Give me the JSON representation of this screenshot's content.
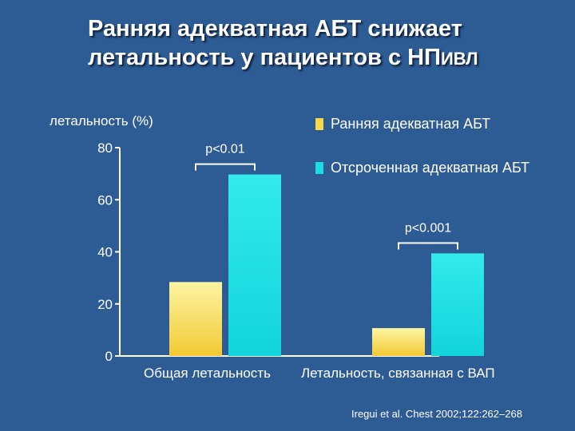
{
  "title": {
    "line1": "Ранняя адекватная АБТ снижает",
    "line2_main": "летальность у пациентов с НП",
    "line2_sub": "ИВЛ"
  },
  "citation": "Iregui et al. Chest 2002;122:262–268",
  "colors": {
    "background": "#2d5b93",
    "early": "#f4d84a",
    "delayed": "#19dbe0"
  },
  "chart_data": {
    "type": "bar",
    "ylabel": "летальность (%)",
    "ylim": [
      0,
      80
    ],
    "yticks": [
      "0",
      "20",
      "40",
      "60",
      "80"
    ],
    "categories": [
      "Общая летальность",
      "Летальность, связанная с ВАП"
    ],
    "series": [
      {
        "name": "Ранняя адекватная АБТ",
        "values": [
          28.4,
          10.7
        ]
      },
      {
        "name": "Отсроченная адекватная АБТ",
        "values": [
          69.7,
          39.4
        ]
      }
    ],
    "annotations": [
      "p<0.01",
      "p<0.001"
    ],
    "legend": "top-right",
    "grid": false
  }
}
